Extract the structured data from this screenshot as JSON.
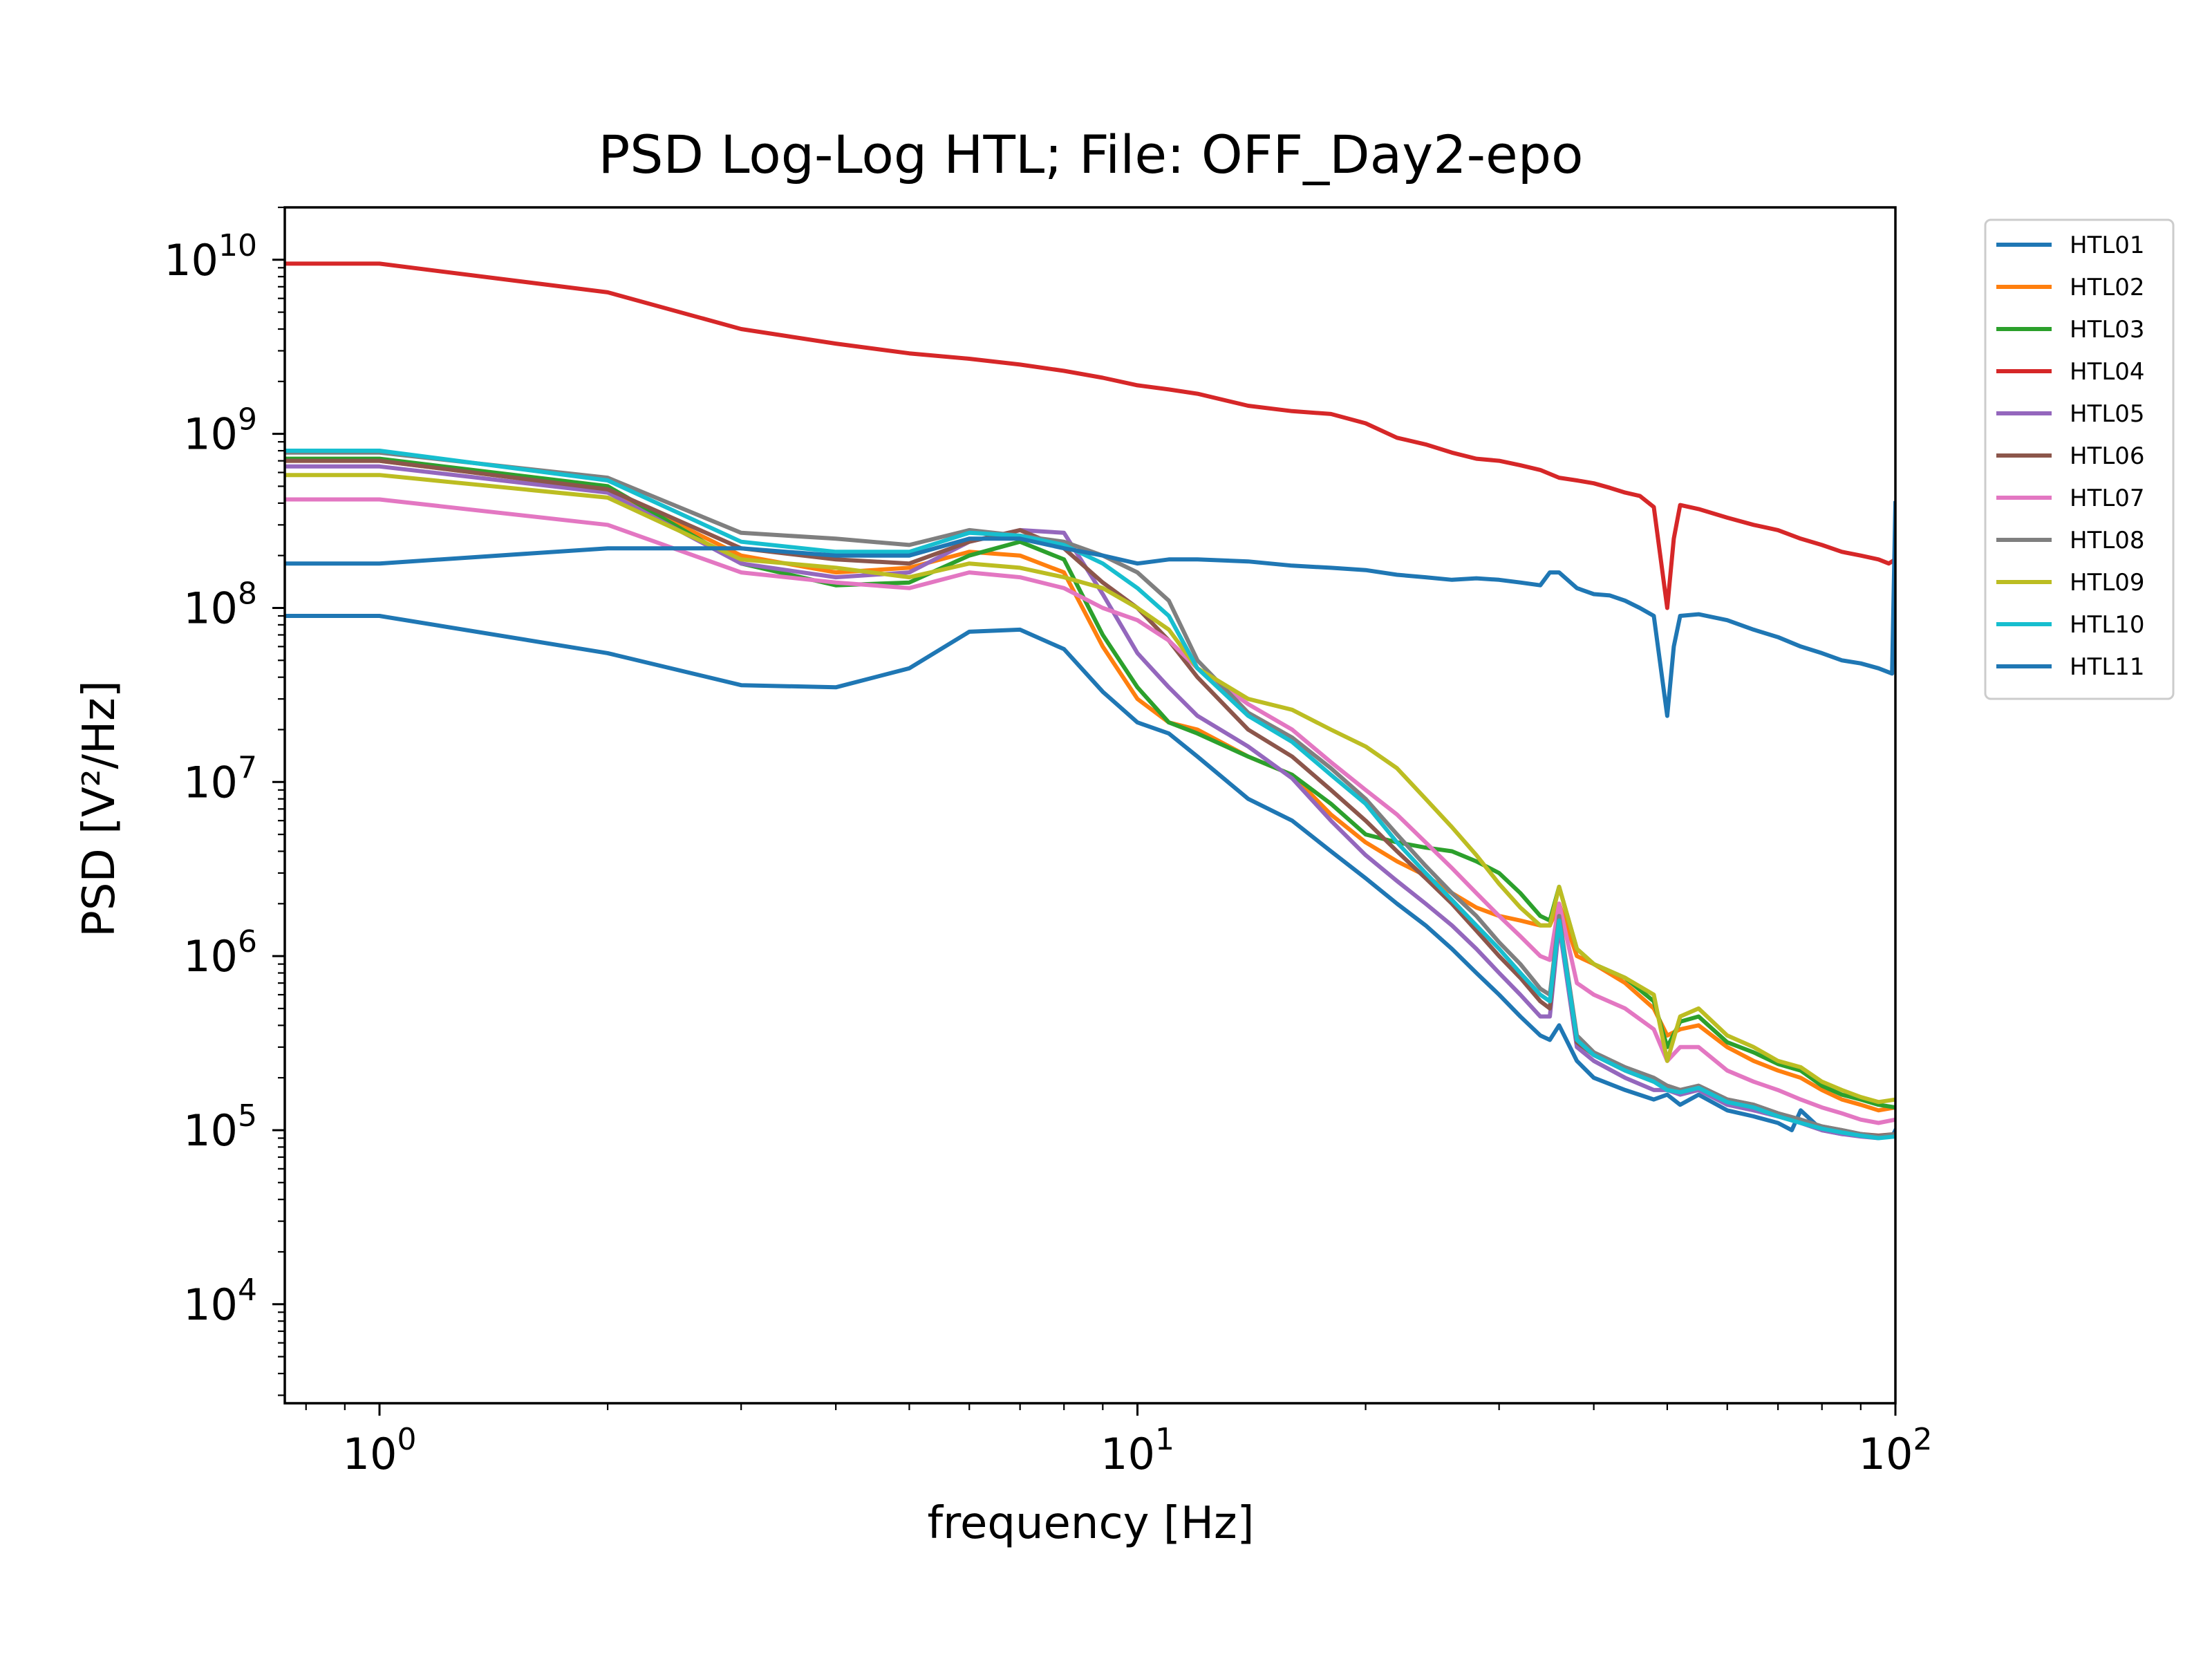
{
  "chart_data": {
    "type": "line",
    "title": "PSD Log-Log HTL; File: OFF_Day2-epo",
    "xlabel": "frequency [Hz]",
    "ylabel": "PSD [V²/Hz]",
    "xscale": "log",
    "yscale": "log",
    "xlim": [
      0.75,
      100
    ],
    "ylim": [
      2700,
      20000000000
    ],
    "xticks": [
      {
        "value": 1,
        "base": "10",
        "exp": "0"
      },
      {
        "value": 10,
        "base": "10",
        "exp": "1"
      },
      {
        "value": 100,
        "base": "10",
        "exp": "2"
      }
    ],
    "yticks": [
      {
        "value": 10000,
        "base": "10",
        "exp": "4"
      },
      {
        "value": 100000,
        "base": "10",
        "exp": "5"
      },
      {
        "value": 1000000,
        "base": "10",
        "exp": "6"
      },
      {
        "value": 10000000,
        "base": "10",
        "exp": "7"
      },
      {
        "value": 100000000,
        "base": "10",
        "exp": "8"
      },
      {
        "value": 1000000000,
        "base": "10",
        "exp": "9"
      },
      {
        "value": 10000000000,
        "base": "10",
        "exp": "10"
      }
    ],
    "grid": false,
    "legend_position": "outside-right-top",
    "series": [
      {
        "name": "HTL01",
        "color": "#1f77b4",
        "x": [
          0.75,
          1,
          2,
          3,
          4,
          5,
          6,
          7,
          8,
          9,
          10,
          11,
          12,
          14,
          16,
          18,
          20,
          22,
          24,
          26,
          28,
          30,
          32,
          34,
          35,
          36,
          38,
          40,
          44,
          48,
          50,
          52,
          55,
          60,
          65,
          70,
          73,
          75,
          80,
          85,
          90,
          95,
          99,
          100
        ],
        "y": [
          90000000,
          90000000,
          55000000,
          36000000,
          35000000,
          45000000,
          73000000,
          75000000,
          58000000,
          33000000,
          22000000,
          19000000,
          14000000,
          8000000,
          6000000,
          4000000,
          2800000,
          2000000,
          1500000,
          1100000,
          800000,
          600000,
          450000,
          350000,
          330000,
          400000,
          250000,
          200000,
          170000,
          150000,
          160000,
          140000,
          160000,
          130000,
          120000,
          110000,
          100000,
          130000,
          100000,
          95000,
          95000,
          92000,
          92000,
          100000
        ]
      },
      {
        "name": "HTL02",
        "color": "#ff7f0e",
        "x": [
          0.75,
          1,
          2,
          3,
          4,
          5,
          6,
          7,
          8,
          9,
          10,
          11,
          12,
          14,
          16,
          18,
          20,
          22,
          24,
          26,
          28,
          30,
          32,
          34,
          35,
          36,
          38,
          40,
          44,
          48,
          50,
          52,
          55,
          60,
          65,
          70,
          75,
          80,
          85,
          90,
          95,
          100
        ],
        "y": [
          700000000,
          700000000,
          480000000,
          200000000,
          160000000,
          170000000,
          210000000,
          200000000,
          160000000,
          60000000,
          30000000,
          22000000,
          20000000,
          14000000,
          11000000,
          6500000,
          4500000,
          3500000,
          2900000,
          2300000,
          1900000,
          1700000,
          1600000,
          1500000,
          1500000,
          2000000,
          1000000,
          900000,
          700000,
          500000,
          350000,
          380000,
          400000,
          300000,
          250000,
          220000,
          200000,
          170000,
          150000,
          140000,
          130000,
          135000
        ]
      },
      {
        "name": "HTL03",
        "color": "#2ca02c",
        "x": [
          0.75,
          1,
          2,
          3,
          4,
          5,
          6,
          7,
          8,
          9,
          10,
          11,
          12,
          14,
          16,
          18,
          20,
          22,
          24,
          26,
          28,
          30,
          32,
          34,
          35,
          36,
          38,
          40,
          44,
          48,
          50,
          52,
          55,
          60,
          65,
          70,
          75,
          80,
          85,
          90,
          95,
          100
        ],
        "y": [
          720000000,
          720000000,
          500000000,
          180000000,
          135000000,
          140000000,
          200000000,
          240000000,
          190000000,
          70000000,
          35000000,
          22000000,
          19000000,
          14000000,
          11000000,
          7500000,
          5000000,
          4500000,
          4200000,
          4000000,
          3500000,
          3000000,
          2300000,
          1700000,
          1600000,
          2500000,
          1100000,
          900000,
          750000,
          550000,
          300000,
          420000,
          450000,
          320000,
          280000,
          240000,
          220000,
          180000,
          160000,
          150000,
          140000,
          135000
        ]
      },
      {
        "name": "HTL04",
        "color": "#d62728",
        "x": [
          0.75,
          1,
          2,
          3,
          4,
          5,
          6,
          7,
          8,
          9,
          10,
          11,
          12,
          14,
          16,
          18,
          20,
          22,
          24,
          26,
          28,
          30,
          32,
          34,
          36,
          38,
          40,
          42,
          44,
          46,
          48,
          50,
          51,
          52,
          55,
          60,
          65,
          70,
          75,
          80,
          85,
          90,
          95,
          98,
          100
        ],
        "y": [
          9500000000,
          9500000000,
          6500000000,
          4000000000,
          3300000000,
          2900000000,
          2700000000,
          2500000000,
          2300000000,
          2100000000,
          1900000000,
          1800000000,
          1700000000,
          1450000000,
          1350000000,
          1300000000,
          1150000000,
          950000000,
          870000000,
          780000000,
          720000000,
          700000000,
          660000000,
          620000000,
          560000000,
          540000000,
          520000000,
          490000000,
          460000000,
          440000000,
          380000000,
          100000000,
          250000000,
          390000000,
          370000000,
          330000000,
          300000000,
          280000000,
          250000000,
          230000000,
          210000000,
          200000000,
          190000000,
          180000000,
          190000000
        ]
      },
      {
        "name": "HTL05",
        "color": "#9467bd",
        "x": [
          0.75,
          1,
          2,
          3,
          4,
          5,
          6,
          7,
          8,
          9,
          10,
          11,
          12,
          14,
          16,
          18,
          20,
          22,
          24,
          26,
          28,
          30,
          32,
          34,
          35,
          36,
          38,
          40,
          44,
          48,
          50,
          52,
          55,
          60,
          65,
          70,
          75,
          80,
          85,
          90,
          95,
          100
        ],
        "y": [
          650000000,
          650000000,
          460000000,
          180000000,
          150000000,
          160000000,
          240000000,
          280000000,
          270000000,
          120000000,
          55000000,
          35000000,
          24000000,
          16000000,
          10500000,
          6000000,
          3800000,
          2700000,
          2000000,
          1500000,
          1100000,
          800000,
          600000,
          450000,
          450000,
          1500000,
          300000,
          250000,
          200000,
          170000,
          170000,
          160000,
          170000,
          140000,
          130000,
          120000,
          110000,
          100000,
          95000,
          92000,
          90000,
          95000
        ]
      },
      {
        "name": "HTL06",
        "color": "#8c564b",
        "x": [
          0.75,
          1,
          2,
          3,
          4,
          5,
          6,
          7,
          8,
          9,
          10,
          11,
          12,
          14,
          16,
          18,
          20,
          22,
          24,
          26,
          28,
          30,
          32,
          34,
          35,
          36,
          38,
          40,
          44,
          48,
          50,
          52,
          55,
          60,
          65,
          70,
          75,
          80,
          85,
          90,
          95,
          100
        ],
        "y": [
          700000000,
          700000000,
          480000000,
          220000000,
          190000000,
          180000000,
          240000000,
          280000000,
          220000000,
          140000000,
          100000000,
          65000000,
          40000000,
          20000000,
          14000000,
          9000000,
          6000000,
          4000000,
          2800000,
          2000000,
          1400000,
          1000000,
          750000,
          550000,
          500000,
          1700000,
          320000,
          270000,
          220000,
          190000,
          180000,
          170000,
          180000,
          150000,
          140000,
          125000,
          115000,
          105000,
          100000,
          95000,
          93000,
          95000
        ]
      },
      {
        "name": "HTL07",
        "color": "#e377c2",
        "x": [
          0.75,
          1,
          2,
          3,
          4,
          5,
          6,
          7,
          8,
          9,
          10,
          11,
          12,
          14,
          16,
          18,
          20,
          22,
          24,
          26,
          28,
          30,
          32,
          34,
          35,
          36,
          38,
          40,
          44,
          48,
          50,
          52,
          55,
          60,
          65,
          70,
          75,
          80,
          85,
          90,
          95,
          100
        ],
        "y": [
          420000000,
          420000000,
          300000000,
          160000000,
          140000000,
          130000000,
          160000000,
          150000000,
          130000000,
          100000000,
          85000000,
          65000000,
          45000000,
          28000000,
          20000000,
          13000000,
          9000000,
          6500000,
          4500000,
          3200000,
          2300000,
          1700000,
          1300000,
          1000000,
          950000,
          2000000,
          700000,
          600000,
          500000,
          380000,
          250000,
          300000,
          300000,
          220000,
          190000,
          170000,
          150000,
          135000,
          125000,
          115000,
          110000,
          115000
        ]
      },
      {
        "name": "HTL08",
        "color": "#7f7f7f",
        "x": [
          0.75,
          1,
          2,
          3,
          4,
          5,
          6,
          7,
          8,
          9,
          10,
          11,
          12,
          14,
          16,
          18,
          20,
          22,
          24,
          26,
          28,
          30,
          32,
          34,
          35,
          36,
          38,
          40,
          44,
          48,
          50,
          52,
          55,
          60,
          65,
          70,
          75,
          80,
          85,
          90,
          95,
          100
        ],
        "y": [
          780000000,
          780000000,
          560000000,
          270000000,
          250000000,
          230000000,
          280000000,
          260000000,
          240000000,
          200000000,
          160000000,
          110000000,
          50000000,
          25000000,
          18000000,
          12000000,
          8000000,
          5000000,
          3300000,
          2300000,
          1700000,
          1200000,
          900000,
          650000,
          600000,
          1700000,
          350000,
          280000,
          230000,
          200000,
          180000,
          170000,
          180000,
          150000,
          140000,
          125000,
          115000,
          105000,
          100000,
          95000,
          92000,
          95000
        ]
      },
      {
        "name": "HTL09",
        "color": "#bcbd22",
        "x": [
          0.75,
          1,
          2,
          3,
          4,
          5,
          6,
          7,
          8,
          9,
          10,
          11,
          12,
          14,
          16,
          18,
          20,
          22,
          24,
          26,
          28,
          30,
          32,
          34,
          35,
          36,
          38,
          40,
          44,
          48,
          50,
          52,
          55,
          60,
          65,
          70,
          75,
          80,
          85,
          90,
          95,
          100
        ],
        "y": [
          580000000,
          580000000,
          430000000,
          190000000,
          170000000,
          150000000,
          180000000,
          170000000,
          150000000,
          130000000,
          100000000,
          75000000,
          45000000,
          30000000,
          26000000,
          20000000,
          16000000,
          12000000,
          8000000,
          5500000,
          3800000,
          2600000,
          1900000,
          1500000,
          1500000,
          2500000,
          1100000,
          900000,
          750000,
          600000,
          250000,
          450000,
          500000,
          350000,
          300000,
          250000,
          230000,
          190000,
          170000,
          155000,
          145000,
          150000
        ]
      },
      {
        "name": "HTL10",
        "color": "#17becf",
        "x": [
          0.75,
          1,
          2,
          3,
          4,
          5,
          6,
          7,
          8,
          9,
          10,
          11,
          12,
          14,
          16,
          18,
          20,
          22,
          24,
          26,
          28,
          30,
          32,
          34,
          35,
          36,
          38,
          40,
          44,
          48,
          50,
          52,
          55,
          60,
          65,
          70,
          75,
          80,
          85,
          90,
          95,
          100
        ],
        "y": [
          800000000,
          800000000,
          540000000,
          240000000,
          210000000,
          210000000,
          270000000,
          260000000,
          230000000,
          180000000,
          130000000,
          90000000,
          45000000,
          24000000,
          17000000,
          11000000,
          7500000,
          4500000,
          3000000,
          2100000,
          1500000,
          1100000,
          800000,
          600000,
          550000,
          1600000,
          330000,
          270000,
          220000,
          190000,
          170000,
          165000,
          175000,
          145000,
          135000,
          120000,
          110000,
          102000,
          97000,
          93000,
          90000,
          92000
        ]
      },
      {
        "name": "HTL11",
        "color": "#1f77b4",
        "x": [
          0.75,
          1,
          2,
          3,
          4,
          5,
          6,
          7,
          8,
          9,
          10,
          11,
          12,
          14,
          16,
          18,
          20,
          22,
          24,
          26,
          28,
          30,
          32,
          34,
          35,
          36,
          38,
          40,
          42,
          44,
          46,
          48,
          50,
          51,
          52,
          55,
          60,
          65,
          70,
          75,
          80,
          85,
          90,
          95,
          99,
          100
        ],
        "y": [
          180000000,
          180000000,
          220000000,
          220000000,
          200000000,
          200000000,
          250000000,
          250000000,
          220000000,
          200000000,
          180000000,
          190000000,
          190000000,
          185000000,
          175000000,
          170000000,
          165000000,
          155000000,
          150000000,
          145000000,
          148000000,
          145000000,
          140000000,
          135000000,
          160000000,
          160000000,
          130000000,
          120000000,
          118000000,
          110000000,
          100000000,
          90000000,
          24000000,
          60000000,
          90000000,
          92000000,
          85000000,
          75000000,
          68000000,
          60000000,
          55000000,
          50000000,
          48000000,
          45000000,
          42000000,
          400000000
        ]
      }
    ]
  }
}
